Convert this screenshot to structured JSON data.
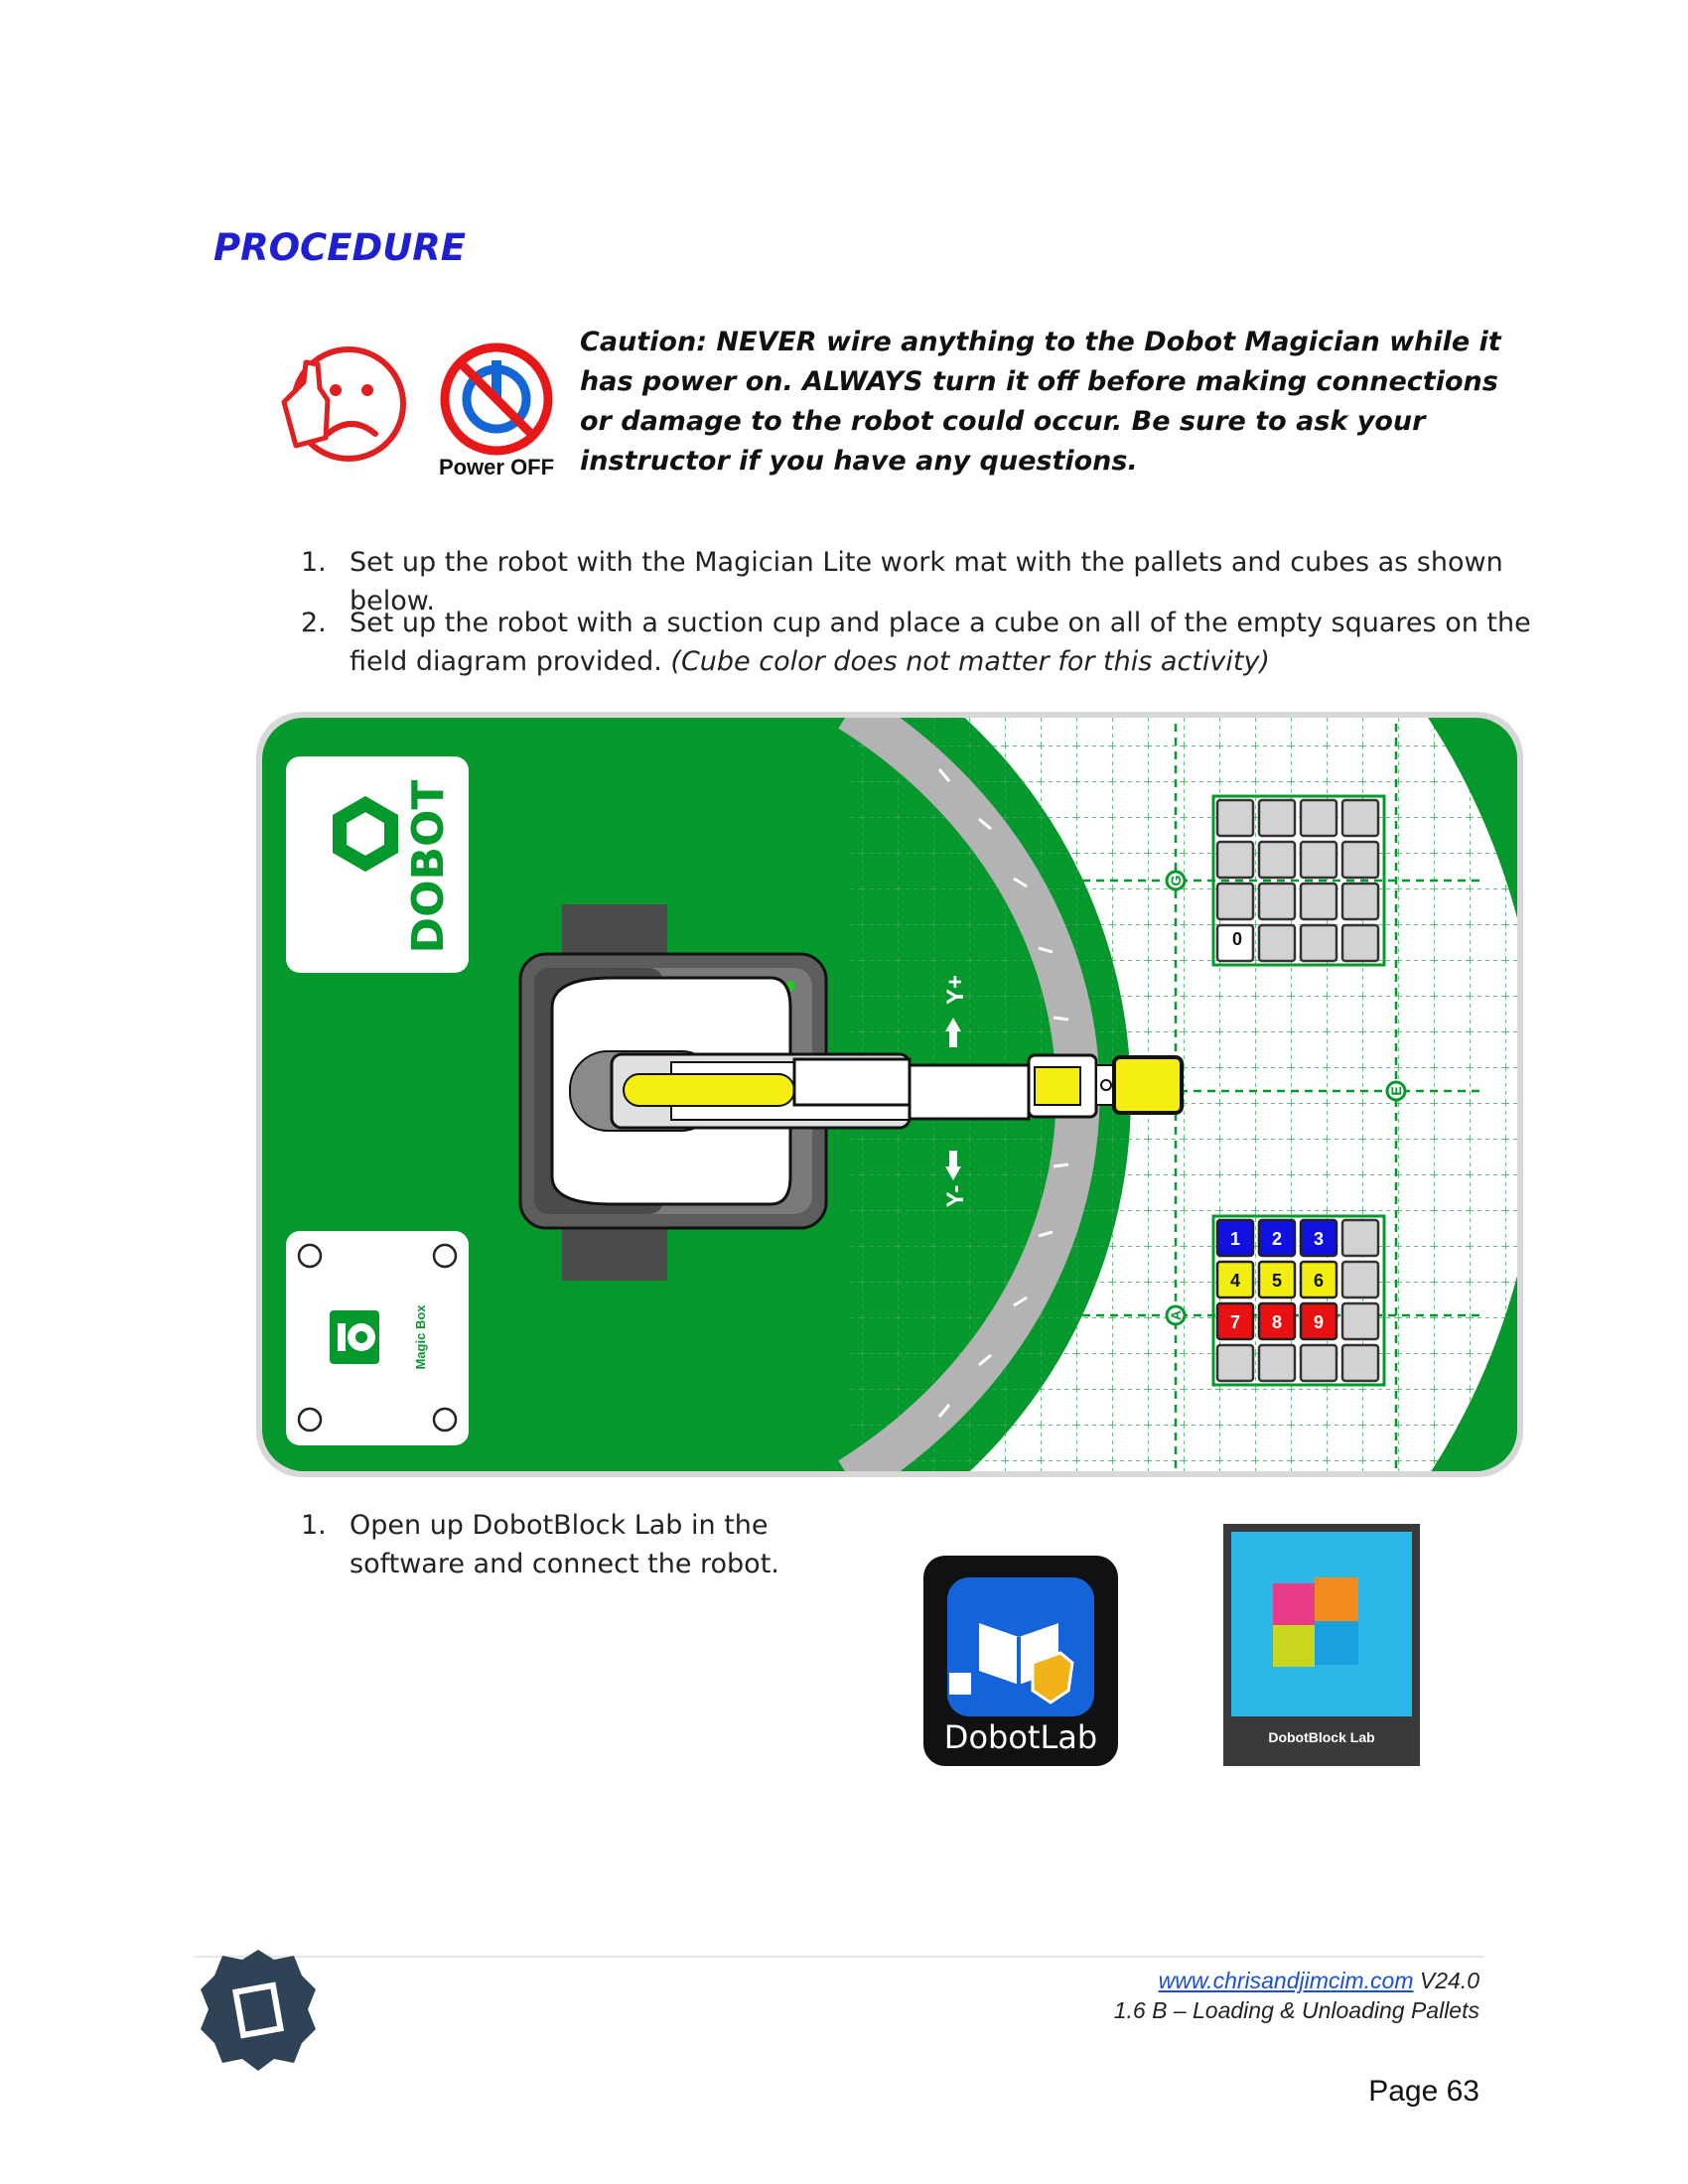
{
  "heading": "PROCEDURE",
  "caution": {
    "text": "Caution: NEVER wire anything to the Dobot Magician while it has power on. ALWAYS turn it off before making connections or damage to the robot could occur. Be sure to ask your instructor if you have any questions.",
    "power_label": "Power OFF"
  },
  "steps_a": [
    {
      "num": "1.",
      "text": "Set up the robot with the Magician Lite work mat with the pallets and cubes as shown below."
    },
    {
      "num": "2.",
      "text": "Set up the robot with a suction cup and place a cube on all of the empty squares on the field diagram provided.",
      "note": "(Cube color does not matter for this activity)"
    }
  ],
  "mat": {
    "logo": "DOBOT",
    "magic_box": "Magic Box",
    "axis_plus": "Y+",
    "axis_minus": "Y-",
    "markers": [
      "G",
      "E",
      "A"
    ],
    "top_pallet_label": "0",
    "cubes": [
      {
        "label": "1",
        "color": "#1010e0"
      },
      {
        "label": "2",
        "color": "#1010e0"
      },
      {
        "label": "3",
        "color": "#1010e0"
      },
      {
        "label": "4",
        "color": "#f2ef10"
      },
      {
        "label": "5",
        "color": "#f2ef10"
      },
      {
        "label": "6",
        "color": "#f2ef10"
      },
      {
        "label": "7",
        "color": "#e81010"
      },
      {
        "label": "8",
        "color": "#e81010"
      },
      {
        "label": "9",
        "color": "#e81010"
      }
    ],
    "colors": {
      "mat_green": "#05982d",
      "grey": "#b3b3b3",
      "dark_grey": "#4b4b4b"
    }
  },
  "steps_b": [
    {
      "num": "1.",
      "line1": "Open up DobotBlock Lab in the",
      "line2": "software and connect the robot."
    }
  ],
  "apps": {
    "dobotlab": "DobotLab",
    "dobotblock": "DobotBlock Lab"
  },
  "footer": {
    "link": "www.chrisandjimcim.com",
    "version": "V24.0",
    "subtitle": "1.6 B – Loading & Unloading Pallets",
    "page": "Page 63"
  }
}
